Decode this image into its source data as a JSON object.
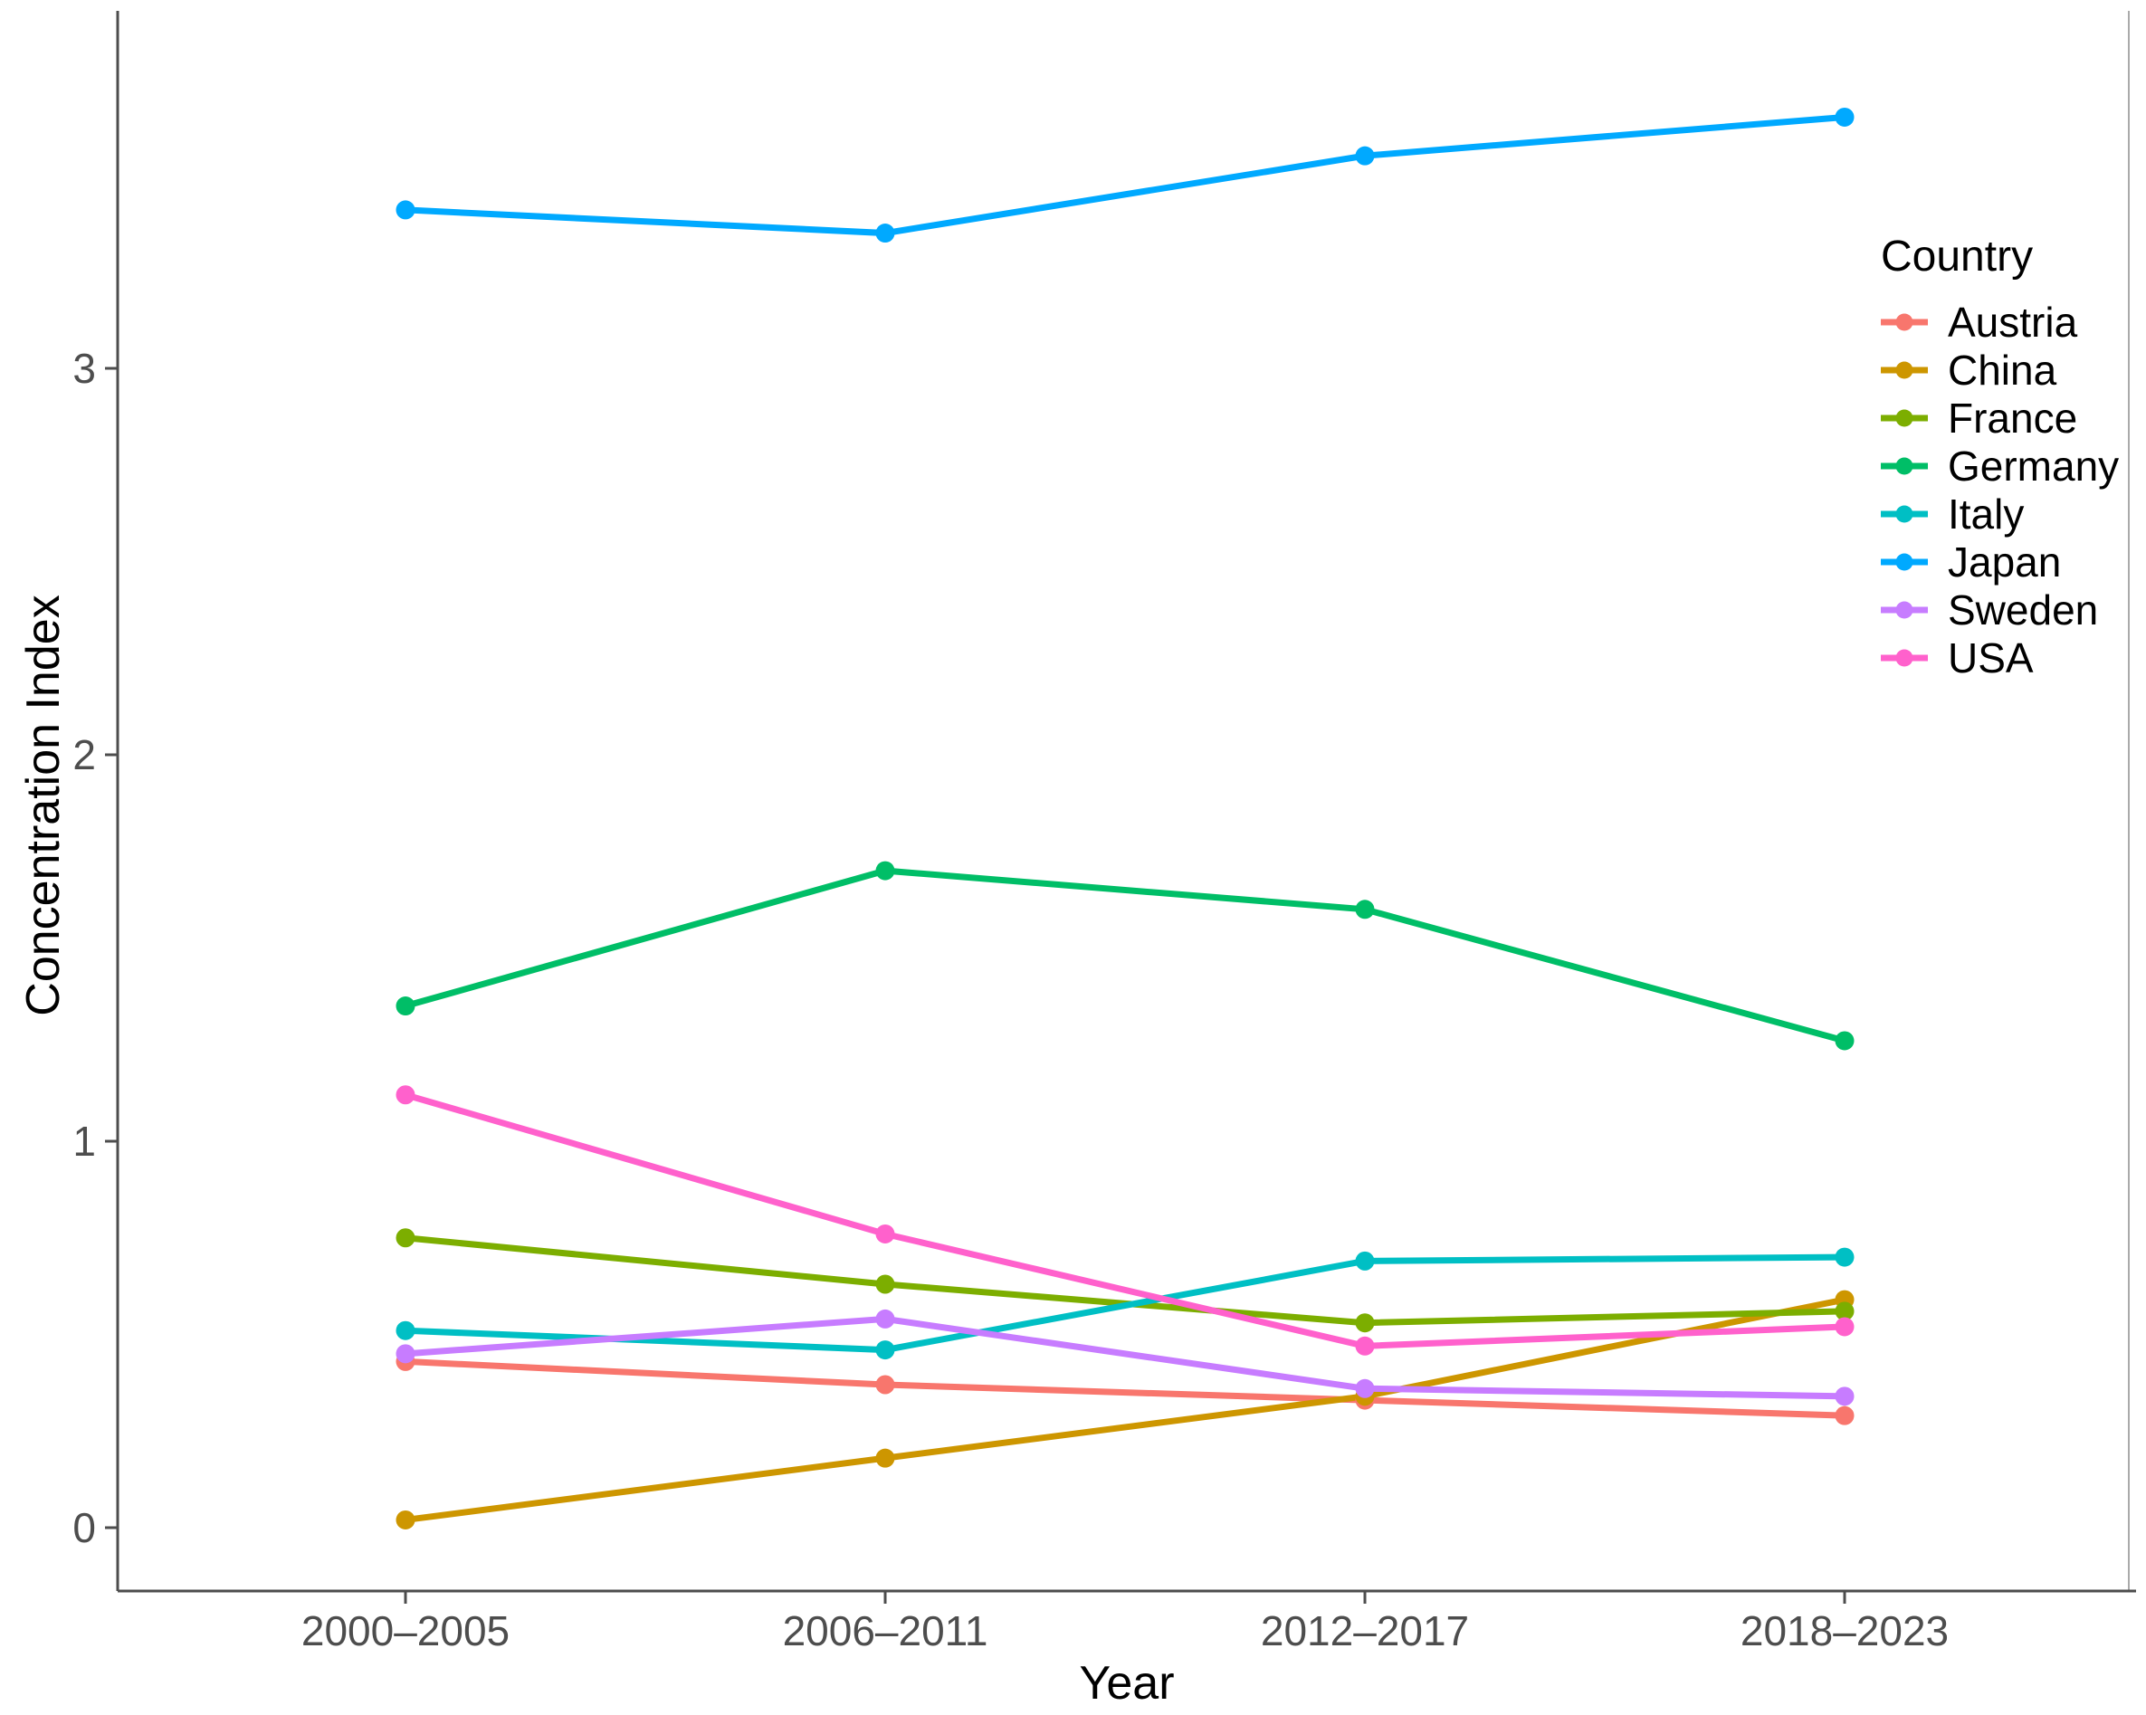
{
  "chart_data": {
    "type": "line",
    "title": "",
    "xlabel": "Year",
    "ylabel": "Concentration Index",
    "categories": [
      "2000–2005",
      "2006–2011",
      "2012–2017",
      "2018–2023"
    ],
    "y_ticks": [
      "0",
      "1",
      "2",
      "3"
    ],
    "ylim": [
      -0.16,
      3.93
    ],
    "grid": false,
    "legend_title": "Country",
    "legend_position": "right-inside",
    "axis_color": "#4d4d4d",
    "tick_label_color": "#4d4d4d",
    "panel_border_color": "#aaaaaa",
    "series": [
      {
        "name": "Austria",
        "color": "#F8766D",
        "values": [
          0.43,
          0.37,
          0.33,
          0.29
        ]
      },
      {
        "name": "China",
        "color": "#CD9600",
        "values": [
          0.02,
          0.18,
          0.34,
          0.59
        ]
      },
      {
        "name": "France",
        "color": "#7CAE00",
        "values": [
          0.75,
          0.63,
          0.53,
          0.56
        ]
      },
      {
        "name": "Germany",
        "color": "#00BE67",
        "values": [
          1.35,
          1.7,
          1.6,
          1.26
        ]
      },
      {
        "name": "Italy",
        "color": "#00BFC4",
        "values": [
          0.51,
          0.46,
          0.69,
          0.7
        ]
      },
      {
        "name": "Japan",
        "color": "#00A9FF",
        "values": [
          3.41,
          3.35,
          3.55,
          3.65
        ]
      },
      {
        "name": "Sweden",
        "color": "#C77CFF",
        "values": [
          0.45,
          0.54,
          0.36,
          0.34
        ]
      },
      {
        "name": "USA",
        "color": "#FF61CC",
        "values": [
          1.12,
          0.76,
          0.47,
          0.52
        ]
      }
    ]
  }
}
